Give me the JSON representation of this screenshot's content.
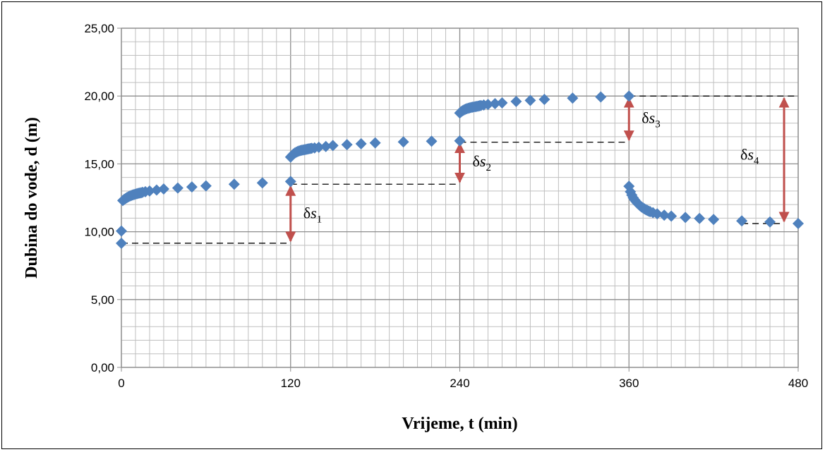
{
  "chart_data": {
    "type": "scatter",
    "xlabel": "Vrijeme, t (min)",
    "ylabel": "Dubina do vode, d (m)",
    "xlim": [
      0,
      480
    ],
    "ylim": [
      0,
      25
    ],
    "x_ticks": [
      "0",
      "120",
      "240",
      "360",
      "480"
    ],
    "y_ticks": [
      "0,00",
      "5,00",
      "10,00",
      "15,00",
      "20,00",
      "25,00"
    ],
    "grid": true,
    "legend": "none",
    "marker": "diamond",
    "colors": {
      "marker": "#4F81BD",
      "arrow": "#C0504D",
      "dashed": "#000000",
      "grid": "#BFBFBF"
    },
    "series": [
      {
        "x": [
          0,
          0,
          1,
          2,
          3,
          4,
          5,
          6,
          7,
          8,
          9,
          10,
          11,
          12,
          13,
          14,
          15,
          17,
          20,
          25,
          30,
          40,
          50,
          60,
          80,
          100,
          120,
          120,
          121,
          122,
          123,
          124,
          125,
          126,
          127,
          128,
          129,
          130,
          131,
          132,
          133,
          134,
          135,
          137,
          140,
          145,
          150,
          160,
          170,
          180,
          200,
          220,
          240,
          240,
          241,
          242,
          243,
          244,
          245,
          246,
          247,
          248,
          249,
          250,
          251,
          252,
          253,
          254,
          255,
          257,
          260,
          265,
          270,
          280,
          290,
          300,
          320,
          340,
          360,
          360,
          361,
          362,
          363,
          364,
          365,
          366,
          367,
          368,
          369,
          370,
          371,
          372,
          373,
          374,
          375,
          377,
          380,
          385,
          390,
          400,
          410,
          420,
          440,
          460,
          480
        ],
        "y": [
          9.15,
          10.05,
          12.3,
          12.38,
          12.45,
          12.52,
          12.58,
          12.63,
          12.67,
          12.71,
          12.74,
          12.77,
          12.8,
          12.83,
          12.85,
          12.87,
          12.9,
          12.95,
          13.0,
          13.07,
          13.15,
          13.22,
          13.3,
          13.38,
          13.5,
          13.6,
          13.7,
          15.5,
          15.62,
          15.72,
          15.8,
          15.86,
          15.91,
          15.95,
          15.98,
          16.01,
          16.03,
          16.05,
          16.07,
          16.09,
          16.11,
          16.13,
          16.15,
          16.18,
          16.22,
          16.28,
          16.35,
          16.42,
          16.48,
          16.55,
          16.62,
          16.67,
          16.7,
          18.75,
          18.85,
          18.92,
          18.98,
          19.03,
          19.07,
          19.1,
          19.13,
          19.16,
          19.18,
          19.2,
          19.22,
          19.24,
          19.26,
          19.28,
          19.3,
          19.34,
          19.38,
          19.44,
          19.5,
          19.6,
          19.68,
          19.75,
          19.85,
          19.93,
          20.0,
          13.35,
          12.95,
          12.7,
          12.5,
          12.35,
          12.22,
          12.1,
          12.0,
          11.9,
          11.82,
          11.75,
          11.68,
          11.62,
          11.57,
          11.52,
          11.48,
          11.4,
          11.32,
          11.22,
          11.15,
          11.05,
          10.98,
          10.9,
          10.8,
          10.72,
          10.6
        ]
      }
    ],
    "annotations": [
      {
        "symbol": "δ",
        "var": "s",
        "sub": "1",
        "x": 120,
        "y_from": 9.15,
        "y_to": 13.5,
        "dash_from": 0,
        "dash_to": 120,
        "dash_y": 9.15
      },
      {
        "symbol": "δ",
        "var": "s",
        "sub": "2",
        "x": 240,
        "y_from": 13.5,
        "y_to": 16.65,
        "dash_from": 120,
        "dash_to": 240,
        "dash_y": 13.5
      },
      {
        "symbol": "δ",
        "var": "s",
        "sub": "3",
        "x": 360,
        "y_from": 16.6,
        "y_to": 20.0,
        "dash_from": 240,
        "dash_to": 360,
        "dash_y": 16.6
      },
      {
        "symbol": "δ",
        "var": "s",
        "sub": "4",
        "x": 470,
        "y_from": 10.6,
        "y_to": 20.0,
        "dash_from": 360,
        "dash_to": 480,
        "dash_y": 20.0
      }
    ],
    "extra_dash": {
      "from": 440,
      "to": 470,
      "y": 10.6
    }
  }
}
